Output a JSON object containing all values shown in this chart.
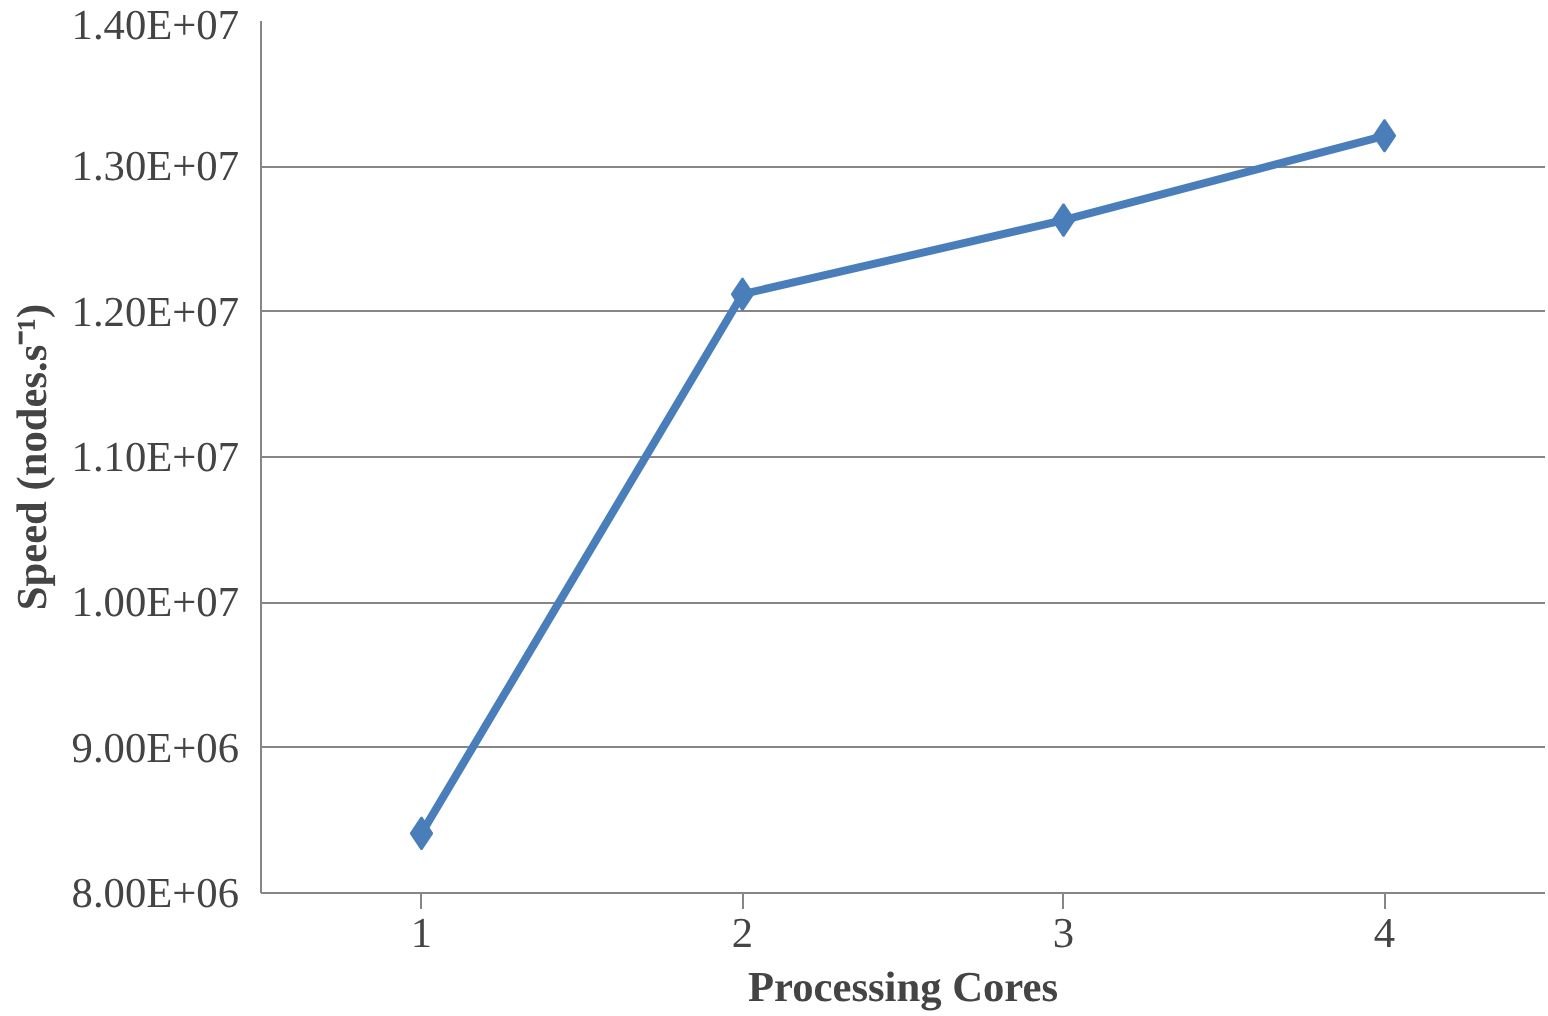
{
  "chart_data": {
    "type": "line",
    "xlabel": "Processing Cores",
    "ylabel": "Speed (nodes.s⁻¹)",
    "categories": [
      "1",
      "2",
      "3",
      "4"
    ],
    "series": [
      {
        "color": "#4a7ebb",
        "values": [
          8410000,
          12120000,
          12630000,
          13210000
        ]
      }
    ],
    "ylim": [
      8000000,
      14000000
    ],
    "yticks": [
      {
        "value": 8000000,
        "label": "8.00E+06"
      },
      {
        "value": 9000000,
        "label": "9.00E+06"
      },
      {
        "value": 10000000,
        "label": "1.00E+07"
      },
      {
        "value": 11000000,
        "label": "1.10E+07"
      },
      {
        "value": 12000000,
        "label": "1.20E+07"
      },
      {
        "value": 13000000,
        "label": "1.30E+07"
      },
      {
        "value": 14000000,
        "label": "1.40E+07"
      }
    ],
    "grid": "y",
    "marker": "diamond",
    "line_style": "solid"
  }
}
